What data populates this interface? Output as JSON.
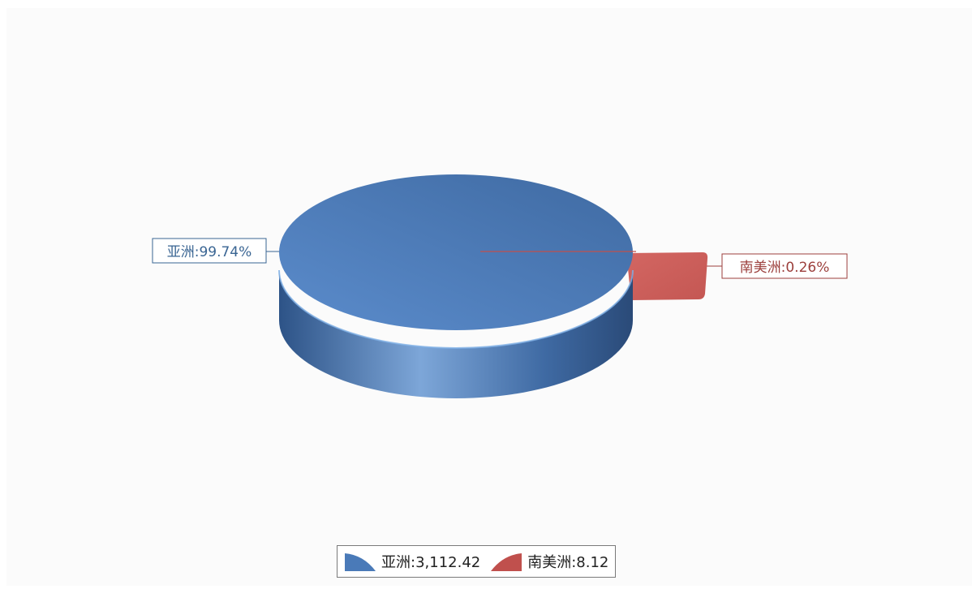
{
  "chart_data": {
    "type": "pie",
    "style": "3d",
    "series": [
      {
        "name": "亚洲",
        "value": 3112.42,
        "percent": 99.74,
        "value_label": "3,112.42",
        "percent_label": "99.74%",
        "data_label": "亚洲:99.74%",
        "legend_label": "亚洲:3,112.42",
        "color": "#4a7ab8",
        "label_color": "#3a6593"
      },
      {
        "name": "南美洲",
        "value": 8.12,
        "percent": 0.26,
        "value_label": "8.12",
        "percent_label": "0.26%",
        "data_label": "南美洲:0.26%",
        "legend_label": "南美洲:8.12",
        "color": "#c0504d",
        "label_color": "#9c3f3c"
      }
    ],
    "legend_position": "bottom"
  }
}
